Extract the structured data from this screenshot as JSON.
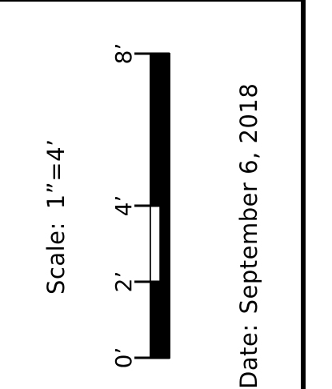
{
  "scale": {
    "label": "Scale:",
    "value": "1”=4’"
  },
  "scalebar": {
    "ticks": [
      {
        "label": "0’",
        "feet": 0
      },
      {
        "label": "2’",
        "feet": 2
      },
      {
        "label": "4’",
        "feet": 4
      },
      {
        "label": "8’",
        "feet": 8
      }
    ],
    "max_feet": 8,
    "color": "#000000"
  },
  "date": {
    "label": "Date:",
    "value": "September 6, 2018"
  }
}
